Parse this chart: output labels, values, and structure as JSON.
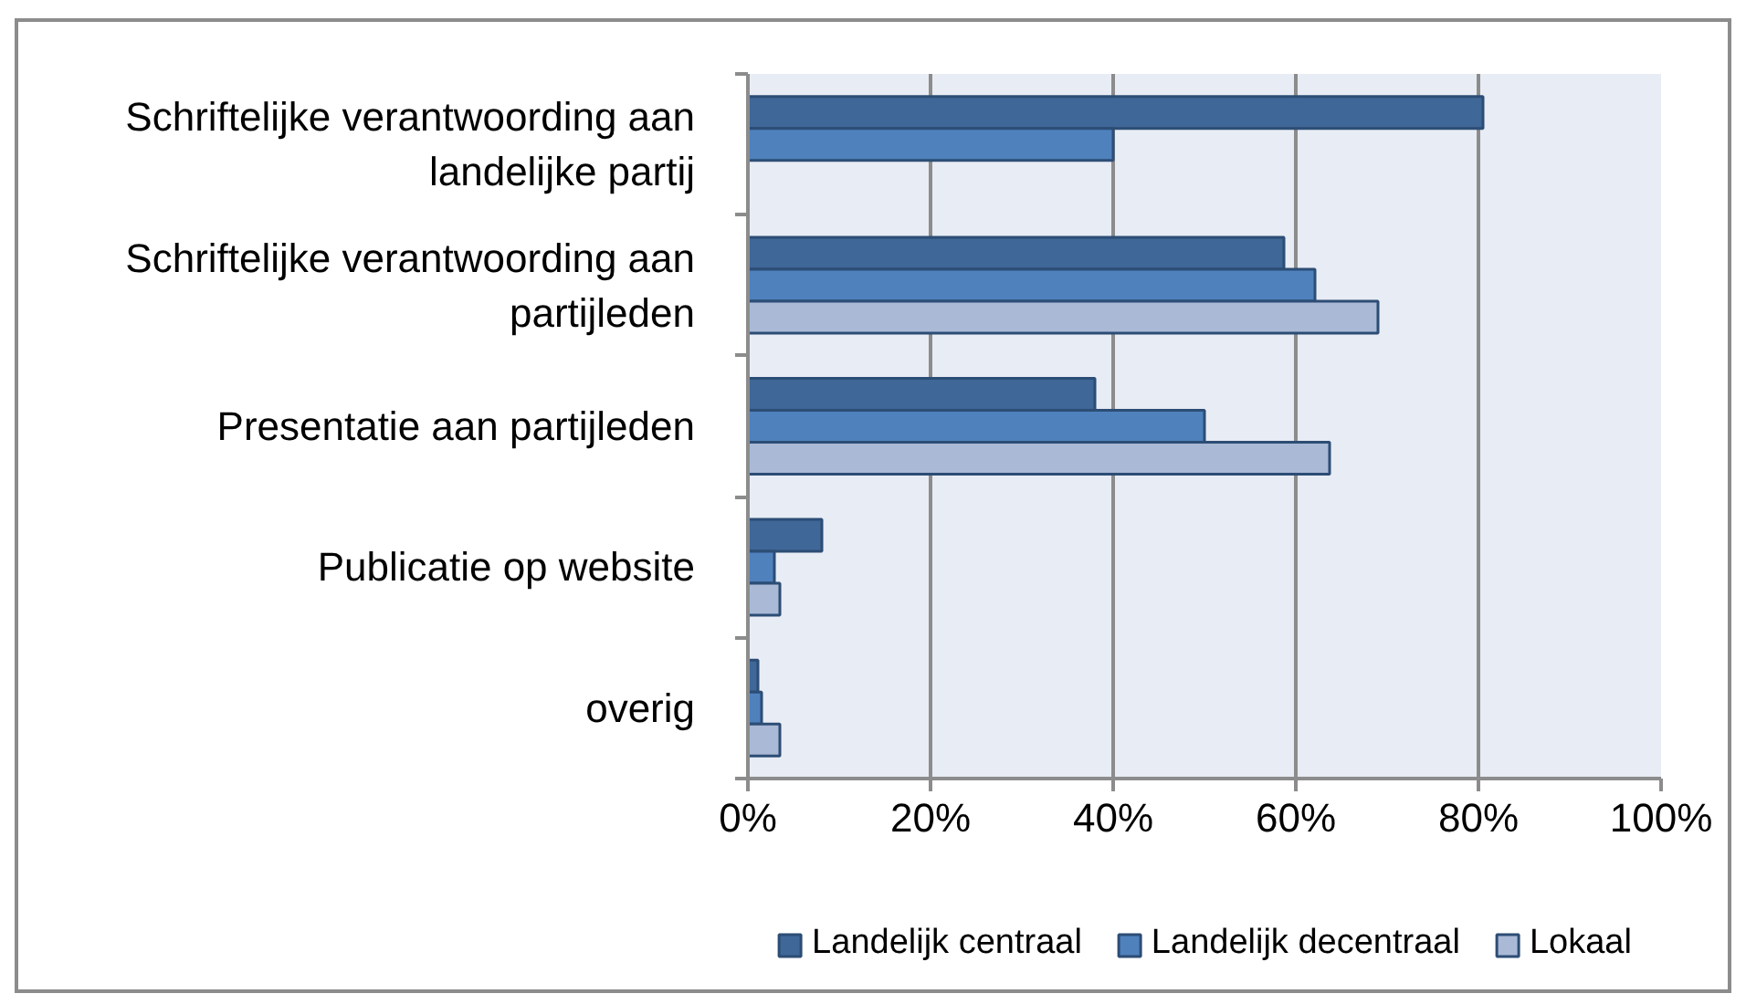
{
  "chart_data": {
    "type": "bar",
    "orientation": "horizontal",
    "categories": [
      "Schriftelijke verantwoording aan landelijke partij",
      "Schriftelijke verantwoording aan partijleden",
      "Presentatie aan partijleden",
      "Publicatie op website",
      "overig"
    ],
    "series": [
      {
        "name": "Landelijk centraal",
        "color": "#3f6797",
        "values": [
          80.5,
          58.7,
          38.0,
          8.1,
          1.1
        ]
      },
      {
        "name": "Landelijk decentraal",
        "color": "#4f81bd",
        "values": [
          40.0,
          62.1,
          50.0,
          2.9,
          1.5
        ]
      },
      {
        "name": "Lokaal",
        "color": "#aab9d6",
        "values": [
          null,
          69.0,
          63.7,
          3.5,
          3.5
        ]
      }
    ],
    "xlim": [
      0,
      100
    ],
    "xticks": [
      {
        "value": 0,
        "label": "0%"
      },
      {
        "value": 20,
        "label": "20%"
      },
      {
        "value": 40,
        "label": "40%"
      },
      {
        "value": 60,
        "label": "60%"
      },
      {
        "value": 80,
        "label": "80%"
      },
      {
        "value": 100,
        "label": "100%"
      }
    ],
    "grid": "x",
    "legend": "bottom"
  }
}
